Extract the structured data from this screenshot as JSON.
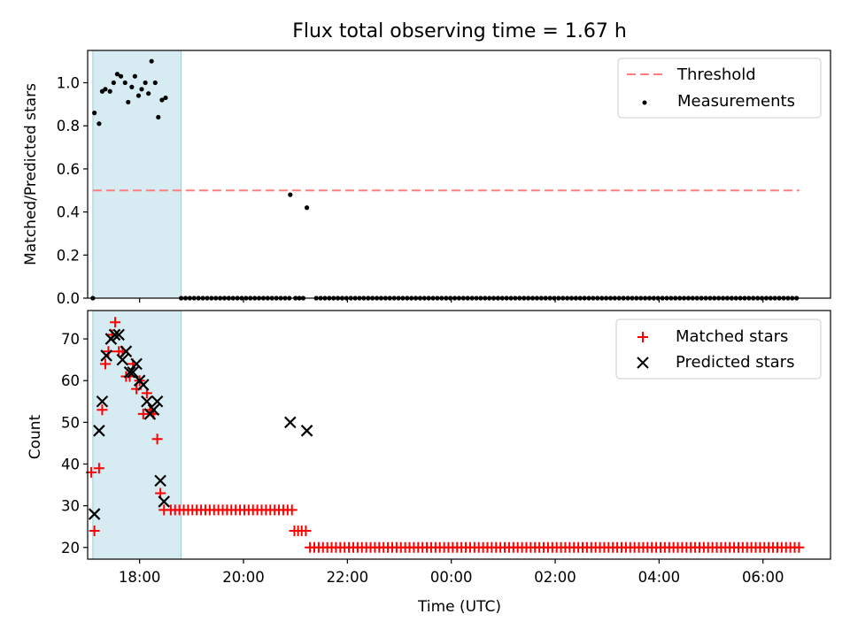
{
  "chart_data": [
    {
      "type": "scatter",
      "title": "Flux total observing time = 1.67 h",
      "xlabel": "",
      "ylabel": "Matched/Predicted stars",
      "xlim": [
        -7.0,
        7.3
      ],
      "ylim": [
        0,
        1.15
      ],
      "yticks": [
        0.0,
        0.2,
        0.4,
        0.6,
        0.8,
        1.0
      ],
      "ytick_labels": [
        "0.0",
        "0.2",
        "0.4",
        "0.6",
        "0.8",
        "1.0"
      ],
      "shaded_region": [
        -6.9,
        -5.2
      ],
      "threshold": {
        "name": "Threshold",
        "value": 0.5,
        "x_range": [
          -6.9,
          6.7
        ],
        "color": "#ff7f7f"
      },
      "series": [
        {
          "name": "Measurements",
          "marker": "dot",
          "color": "#000000",
          "points": [
            [
              -6.9,
              0.0
            ],
            [
              -6.87,
              0.86
            ],
            [
              -6.78,
              0.81
            ],
            [
              -6.72,
              0.96
            ],
            [
              -6.66,
              0.97
            ],
            [
              -6.57,
              0.96
            ],
            [
              -6.5,
              1.0
            ],
            [
              -6.43,
              1.04
            ],
            [
              -6.36,
              1.03
            ],
            [
              -6.28,
              1.0
            ],
            [
              -6.22,
              0.91
            ],
            [
              -6.15,
              0.98
            ],
            [
              -6.09,
              1.03
            ],
            [
              -6.02,
              0.94
            ],
            [
              -5.96,
              0.97
            ],
            [
              -5.89,
              1.0
            ],
            [
              -5.83,
              0.95
            ],
            [
              -5.77,
              1.1
            ],
            [
              -5.7,
              1.0
            ],
            [
              -5.64,
              0.84
            ],
            [
              -5.57,
              0.92
            ],
            [
              -5.5,
              0.93
            ],
            [
              -3.1,
              0.48
            ],
            [
              -2.78,
              0.42
            ]
          ],
          "zero_runs": [
            {
              "start": -5.2,
              "end": -3.1,
              "step": 0.0833
            },
            {
              "start": -3.0,
              "end": -2.85,
              "step": 0.075
            },
            {
              "start": -2.6,
              "end": 6.7,
              "step": 0.0833
            }
          ]
        }
      ],
      "legend": {
        "position": "top-right",
        "entries": [
          "Threshold",
          "Measurements"
        ]
      }
    },
    {
      "type": "scatter",
      "title": "",
      "xlabel": "Time (UTC)",
      "ylabel": "Count",
      "xlim": [
        -7.0,
        7.3
      ],
      "ylim": [
        17.2,
        76.8
      ],
      "yticks": [
        20,
        30,
        40,
        50,
        60,
        70
      ],
      "ytick_labels": [
        "20",
        "30",
        "40",
        "50",
        "60",
        "70"
      ],
      "xticks": [
        -6,
        -4,
        -2,
        0,
        2,
        4,
        6
      ],
      "xtick_labels": [
        "18:00",
        "20:00",
        "22:00",
        "00:00",
        "02:00",
        "04:00",
        "06:00"
      ],
      "shaded_region": [
        -6.9,
        -5.2
      ],
      "series": [
        {
          "name": "Matched stars",
          "marker": "plus",
          "color": "#ff0000",
          "points": [
            [
              -6.93,
              38
            ],
            [
              -6.87,
              24
            ],
            [
              -6.78,
              39
            ],
            [
              -6.72,
              53
            ],
            [
              -6.66,
              64
            ],
            [
              -6.6,
              67
            ],
            [
              -6.53,
              71
            ],
            [
              -6.47,
              74
            ],
            [
              -6.4,
              67
            ],
            [
              -6.33,
              67
            ],
            [
              -6.26,
              61
            ],
            [
              -6.19,
              61
            ],
            [
              -6.13,
              64
            ],
            [
              -6.06,
              58
            ],
            [
              -6.0,
              60
            ],
            [
              -5.93,
              52
            ],
            [
              -5.86,
              57
            ],
            [
              -5.8,
              53
            ],
            [
              -5.73,
              52
            ],
            [
              -5.66,
              46
            ],
            [
              -5.6,
              33
            ],
            [
              -5.53,
              29
            ],
            [
              -3.02,
              24
            ],
            [
              -2.95,
              24
            ],
            [
              -2.88,
              24
            ],
            [
              -2.8,
              24
            ]
          ],
          "runs": [
            {
              "start": -5.4,
              "end": -3.05,
              "step": 0.0833,
              "value": 29
            },
            {
              "start": -2.72,
              "end": 6.7,
              "step": 0.0833,
              "value": 20
            }
          ]
        },
        {
          "name": "Predicted stars",
          "marker": "x",
          "color": "#000000",
          "points": [
            [
              -6.87,
              28
            ],
            [
              -6.78,
              48
            ],
            [
              -6.72,
              55
            ],
            [
              -6.64,
              66
            ],
            [
              -6.55,
              70
            ],
            [
              -6.48,
              71
            ],
            [
              -6.4,
              71
            ],
            [
              -6.33,
              65
            ],
            [
              -6.26,
              67
            ],
            [
              -6.19,
              62
            ],
            [
              -6.13,
              62
            ],
            [
              -6.06,
              64
            ],
            [
              -6.0,
              60
            ],
            [
              -5.93,
              59
            ],
            [
              -5.86,
              55
            ],
            [
              -5.8,
              52
            ],
            [
              -5.73,
              53
            ],
            [
              -5.66,
              55
            ],
            [
              -5.6,
              36
            ],
            [
              -5.53,
              31
            ],
            [
              -3.1,
              50
            ],
            [
              -2.78,
              48
            ]
          ]
        }
      ],
      "legend": {
        "position": "top-right",
        "entries": [
          "Matched stars",
          "Predicted stars"
        ]
      }
    }
  ]
}
